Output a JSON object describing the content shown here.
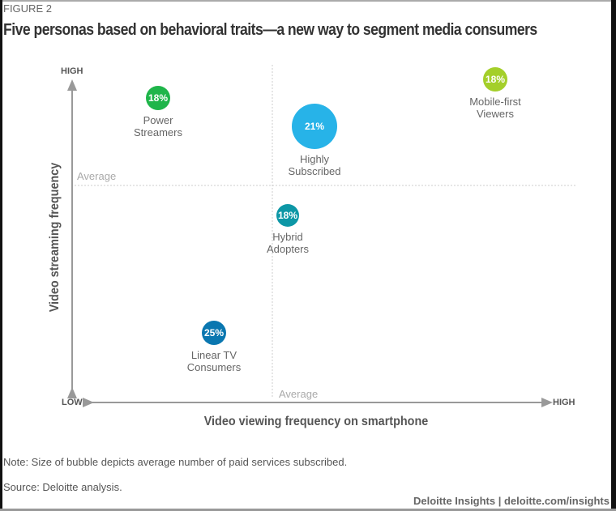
{
  "figure_label": "FIGURE 2",
  "title": "Five personas based on behavioral traits—a new way to segment media consumers",
  "note": "Note: Size of bubble depicts average number of paid services subscribed.",
  "source": "Source: Deloitte analysis.",
  "credit": "Deloitte Insights | deloitte.com/insights",
  "chart_data": {
    "type": "scatter",
    "xlabel": "Video viewing frequency on smartphone",
    "ylabel": "Video streaming frequency",
    "x_low_label": "LOW",
    "x_high_label": "HIGH",
    "y_high_label": "HIGH",
    "x_average_label": "Average",
    "y_average_label": "Average",
    "grid": false,
    "series": [
      {
        "name": "Power Streamers",
        "line1": "Power",
        "line2": "Streamers",
        "value": "18%",
        "color": "#1fb54a"
      },
      {
        "name": "Highly Subscribed",
        "line1": "Highly",
        "line2": "Subscribed",
        "value": "21%",
        "color": "#27b3e8"
      },
      {
        "name": "Mobile-first Viewers",
        "line1": "Mobile-first",
        "line2": "Viewers",
        "value": "18%",
        "color": "#a4cf2a"
      },
      {
        "name": "Hybrid Adopters",
        "line1": "Hybrid",
        "line2": "Adopters",
        "value": "18%",
        "color": "#0d97a6"
      },
      {
        "name": "Linear TV Consumers",
        "line1": "Linear TV",
        "line2": "Consumers",
        "value": "25%",
        "color": "#0a77b0"
      }
    ]
  }
}
